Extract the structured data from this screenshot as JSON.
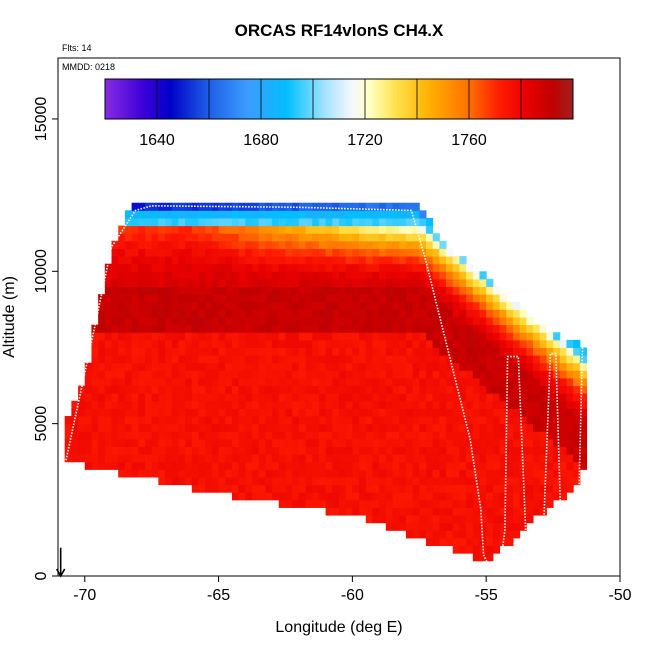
{
  "chart_data": {
    "type": "heatmap",
    "title": "ORCAS RF14vlonS CH4.X",
    "flights_label": "Flts: 14",
    "date_label": "MMDD: 0218",
    "xlabel": "Longitude (deg E)",
    "ylabel": "Altitude (m)",
    "xlim": [
      -71,
      -50
    ],
    "ylim": [
      0,
      17000
    ],
    "x_ticks": [
      -70,
      -65,
      -60,
      -55,
      -50
    ],
    "x_tick_labels": [
      "-70",
      "-65",
      "-60",
      "-55",
      "-50"
    ],
    "y_ticks": [
      0,
      5000,
      10000,
      15000
    ],
    "y_tick_labels": [
      "0",
      "5000",
      "10000",
      "15000"
    ],
    "colorbar": {
      "min": 1620,
      "max": 1800,
      "ticks": [
        1640,
        1680,
        1720,
        1760
      ],
      "tick_labels": [
        "1640",
        "1680",
        "1720",
        "1760"
      ],
      "segment_edges": [
        1620,
        1640,
        1660,
        1680,
        1700,
        1720,
        1740,
        1760,
        1780,
        1800
      ],
      "stops": [
        {
          "v": 1620,
          "c": "#8a2be2"
        },
        {
          "v": 1635,
          "c": "#3a00d8"
        },
        {
          "v": 1645,
          "c": "#0000c8"
        },
        {
          "v": 1660,
          "c": "#1e5fe8"
        },
        {
          "v": 1675,
          "c": "#3c9cff"
        },
        {
          "v": 1690,
          "c": "#00bfff"
        },
        {
          "v": 1705,
          "c": "#a8e4ff"
        },
        {
          "v": 1715,
          "c": "#f4f8ff"
        },
        {
          "v": 1722,
          "c": "#ffffc0"
        },
        {
          "v": 1732,
          "c": "#ffe24a"
        },
        {
          "v": 1745,
          "c": "#ffb000"
        },
        {
          "v": 1760,
          "c": "#ff7000"
        },
        {
          "v": 1772,
          "c": "#ff1a00"
        },
        {
          "v": 1782,
          "c": "#e80000"
        },
        {
          "v": 1792,
          "c": "#c00000"
        },
        {
          "v": 1800,
          "c": "#a02020"
        }
      ]
    },
    "field": {
      "lon_step": 0.25,
      "alt_step": 250,
      "outline": [
        [
          -70.8,
          3800
        ],
        [
          -70.8,
          5000
        ],
        [
          -70.0,
          6500
        ],
        [
          -69.5,
          8800
        ],
        [
          -69.0,
          10800
        ],
        [
          -68.2,
          12200
        ],
        [
          -57.5,
          12200
        ],
        [
          -56.5,
          10800
        ],
        [
          -55.0,
          9800
        ],
        [
          -53.0,
          8200
        ],
        [
          -51.3,
          7500
        ],
        [
          -51.3,
          3500
        ],
        [
          -52.0,
          2600
        ],
        [
          -53.0,
          2000
        ],
        [
          -55.0,
          400
        ],
        [
          -55.8,
          700
        ],
        [
          -60.0,
          2000
        ],
        [
          -65.0,
          2700
        ],
        [
          -70.0,
          3600
        ]
      ],
      "low_cut": [
        [
          -53.0,
          -400
        ],
        [
          -53.5,
          -250
        ],
        [
          -54.5,
          200
        ],
        [
          -55.5,
          400
        ],
        [
          -60.0,
          1500
        ],
        [
          -65.0,
          2300
        ],
        [
          -70.0,
          3000
        ],
        [
          -71.0,
          3300
        ]
      ]
    },
    "flight_track": [
      [
        -70.7,
        3800
      ],
      [
        -69.6,
        8300
      ],
      [
        -69.0,
        10800
      ],
      [
        -68.1,
        12000
      ],
      [
        -67.5,
        12150
      ],
      [
        -62.0,
        12100
      ],
      [
        -57.8,
        12000
      ],
      [
        -57.3,
        10500
      ],
      [
        -55.6,
        4500
      ],
      [
        -55.2,
        2200
      ],
      [
        -55.1,
        700
      ],
      [
        -54.8,
        150
      ],
      [
        -54.5,
        200
      ],
      [
        -54.3,
        1500
      ],
      [
        -54.2,
        7200
      ],
      [
        -53.8,
        7200
      ],
      [
        -53.5,
        1000
      ],
      [
        -53.3,
        250
      ],
      [
        -52.9,
        600
      ],
      [
        -52.6,
        7300
      ],
      [
        -52.4,
        7300
      ],
      [
        -52.2,
        1500
      ],
      [
        -51.9,
        350
      ],
      [
        -51.6,
        500
      ],
      [
        -51.4,
        7500
      ]
    ],
    "arrow": {
      "lon": -70.9,
      "alt_from": 600,
      "alt_to": 0
    }
  }
}
